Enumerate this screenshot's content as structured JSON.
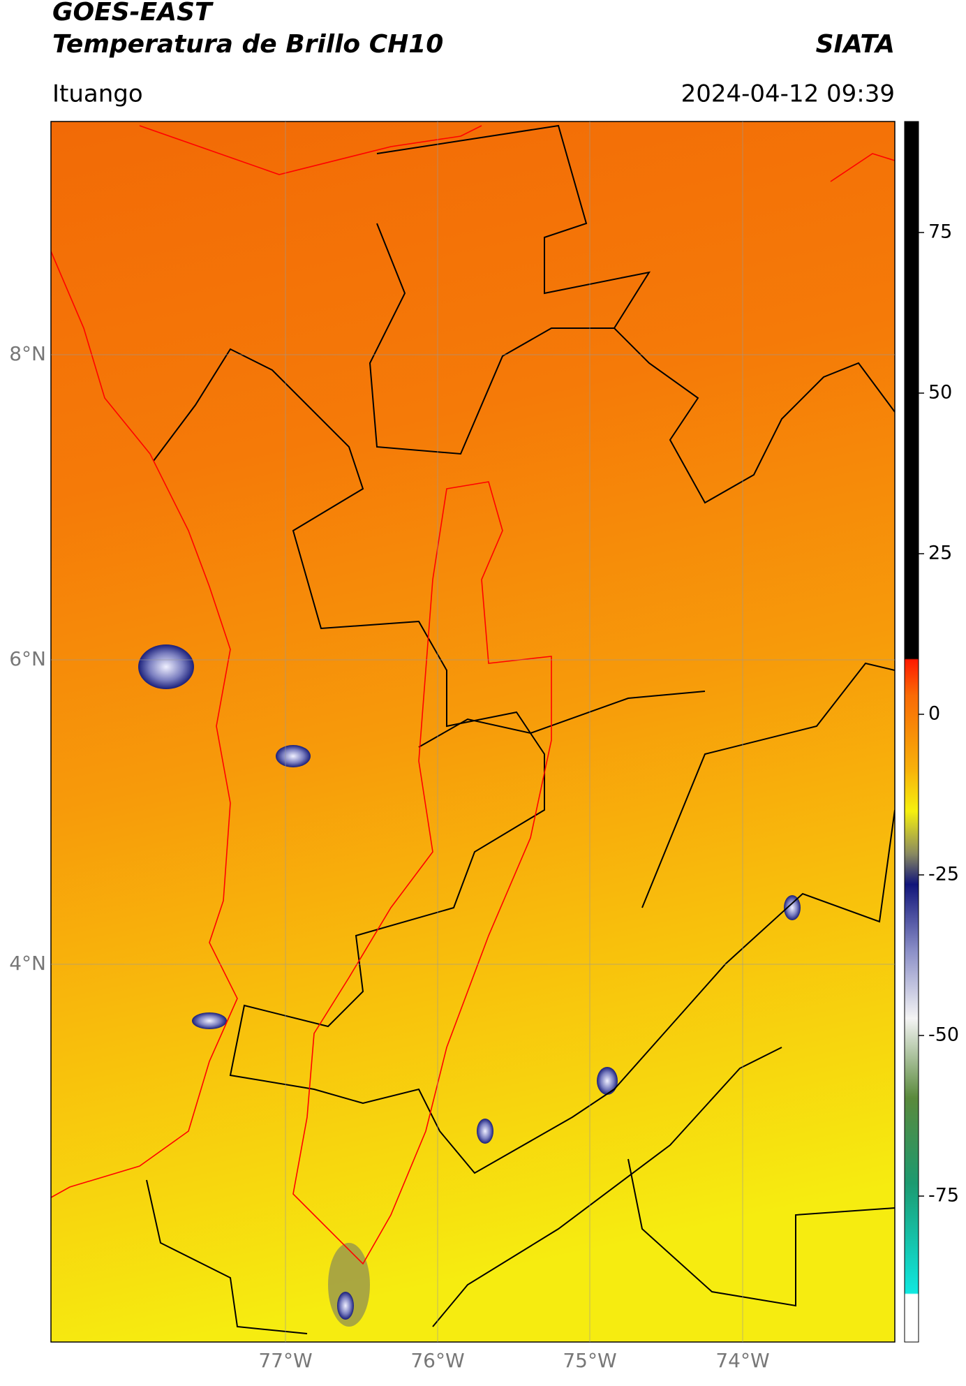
{
  "header": {
    "title_line1": "GOES-EAST",
    "title_line2": "Temperatura de Brillo CH10",
    "source": "SIATA",
    "region": "Ituango",
    "datetime": "2024-04-12 09:39"
  },
  "map": {
    "lon_ticks": [
      "77°W",
      "76°W",
      "75°W",
      "74°W"
    ],
    "lat_ticks": [
      "8°N",
      "6°N",
      "4°N"
    ]
  },
  "colorbar": {
    "ticks": [
      75,
      50,
      25,
      0,
      -25,
      -50,
      -75
    ]
  }
}
